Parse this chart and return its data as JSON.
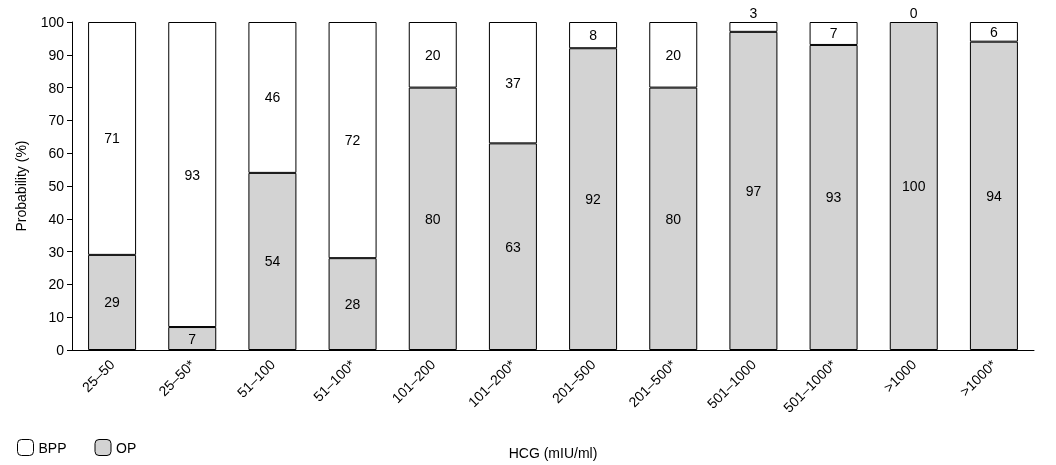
{
  "chart_data": {
    "type": "bar",
    "stacked": true,
    "xlabel": "HCG (mIU/ml)",
    "ylabel": "Probability (%)",
    "categories": [
      "25–50",
      "25–50*",
      "51–100",
      "51–100*",
      "101–200",
      "101–200*",
      "201–500",
      "201–500*",
      "501–1000",
      "501–1000*",
      ">1000",
      ">1000*"
    ],
    "series": [
      {
        "name": "OP",
        "color": "#d3d3d3",
        "values": [
          29,
          7,
          54,
          28,
          80,
          63,
          92,
          80,
          97,
          93,
          100,
          94
        ]
      },
      {
        "name": "BPP",
        "color": "#ffffff",
        "values": [
          71,
          93,
          46,
          72,
          20,
          37,
          8,
          20,
          3,
          7,
          0,
          6
        ]
      }
    ],
    "ylim": [
      0,
      100
    ],
    "yticks": [
      0,
      10,
      20,
      30,
      40,
      50,
      60,
      70,
      80,
      90,
      100
    ],
    "grid": false,
    "legend": "bottom left",
    "data_labels": true
  }
}
